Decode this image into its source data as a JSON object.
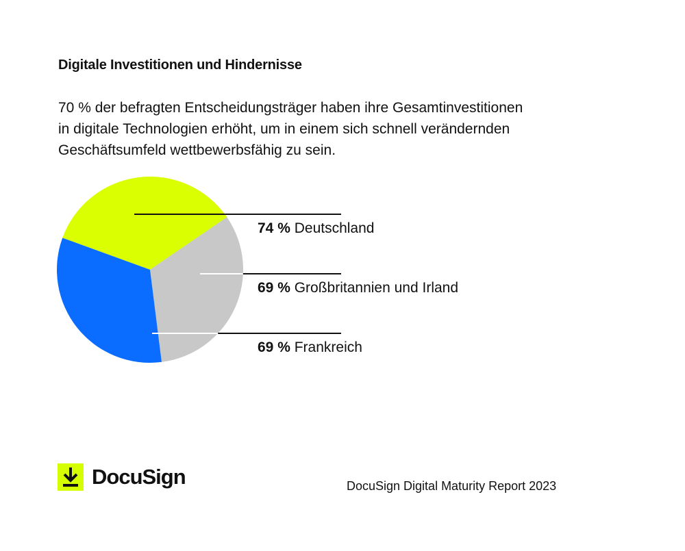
{
  "heading": "Digitale Investitionen und Hindernisse",
  "intro_lines": [
    "70 % der befragten Entscheidungsträger haben ihre Gesamtinvestitionen",
    "in digitale Technologien erhöht, um in einem sich schnell verändernden",
    "Geschäftsumfeld wettbewerbsfähig zu sein."
  ],
  "chart_data": {
    "type": "pie",
    "series": [
      {
        "value": 74,
        "value_label": "74 %",
        "label": "Deutschland",
        "color": "#d9ff00"
      },
      {
        "value": 69,
        "value_label": "69 %",
        "label": "Großbritannien und Irland",
        "color": "#c8c8c8"
      },
      {
        "value": 69,
        "value_label": "69 %",
        "label": "Frankreich",
        "color": "#0a6dff"
      }
    ],
    "legend": "right, leader lines"
  },
  "brand": {
    "name": "DocuSign",
    "icon": "download-arrow-icon",
    "accent": "#d5ff00"
  },
  "footer": "DocuSign Digital Maturity Report 2023"
}
